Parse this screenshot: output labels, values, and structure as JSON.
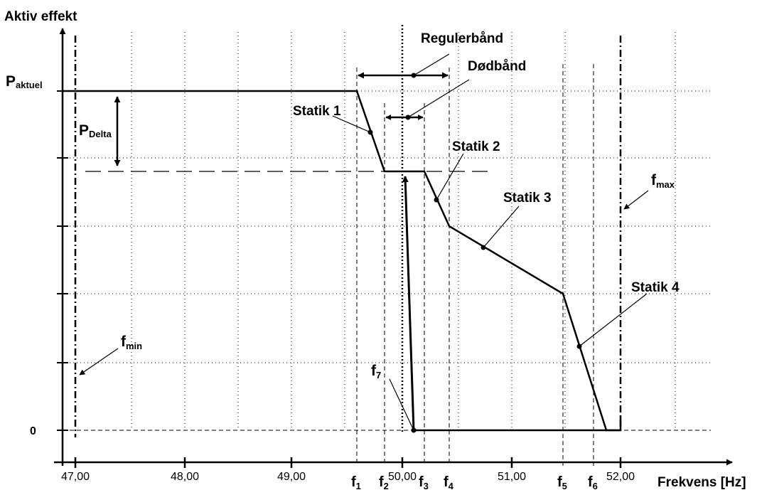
{
  "axes": {
    "y_title": "Aktiv effekt",
    "x_title": "Frekvens [Hz]"
  },
  "ticks": [
    "47,00",
    "48,00",
    "49,00",
    "50,00",
    "51,00",
    "52,00"
  ],
  "labels": {
    "p_aktuel": {
      "main": "P",
      "sub": "aktuel"
    },
    "p_delta": {
      "main": "P",
      "sub": "Delta"
    },
    "zero": "0",
    "regulerbaand": "Regulerbånd",
    "doedbaand": "Dødbånd",
    "statik_1": "Statik 1",
    "statik_2": "Statik 2",
    "statik_3": "Statik 3",
    "statik_4": "Statik 4",
    "fmin": {
      "main": "f",
      "sub": "min"
    },
    "fmax": {
      "main": "f",
      "sub": "max"
    },
    "f7": {
      "main": "f",
      "sub": "7"
    },
    "f1": {
      "main": "f",
      "sub": "1"
    },
    "f2": {
      "main": "f",
      "sub": "2"
    },
    "f3": {
      "main": "f",
      "sub": "3"
    },
    "f4": {
      "main": "f",
      "sub": "4"
    },
    "f5": {
      "main": "f",
      "sub": "5"
    },
    "f6": {
      "main": "f",
      "sub": "6"
    }
  }
}
